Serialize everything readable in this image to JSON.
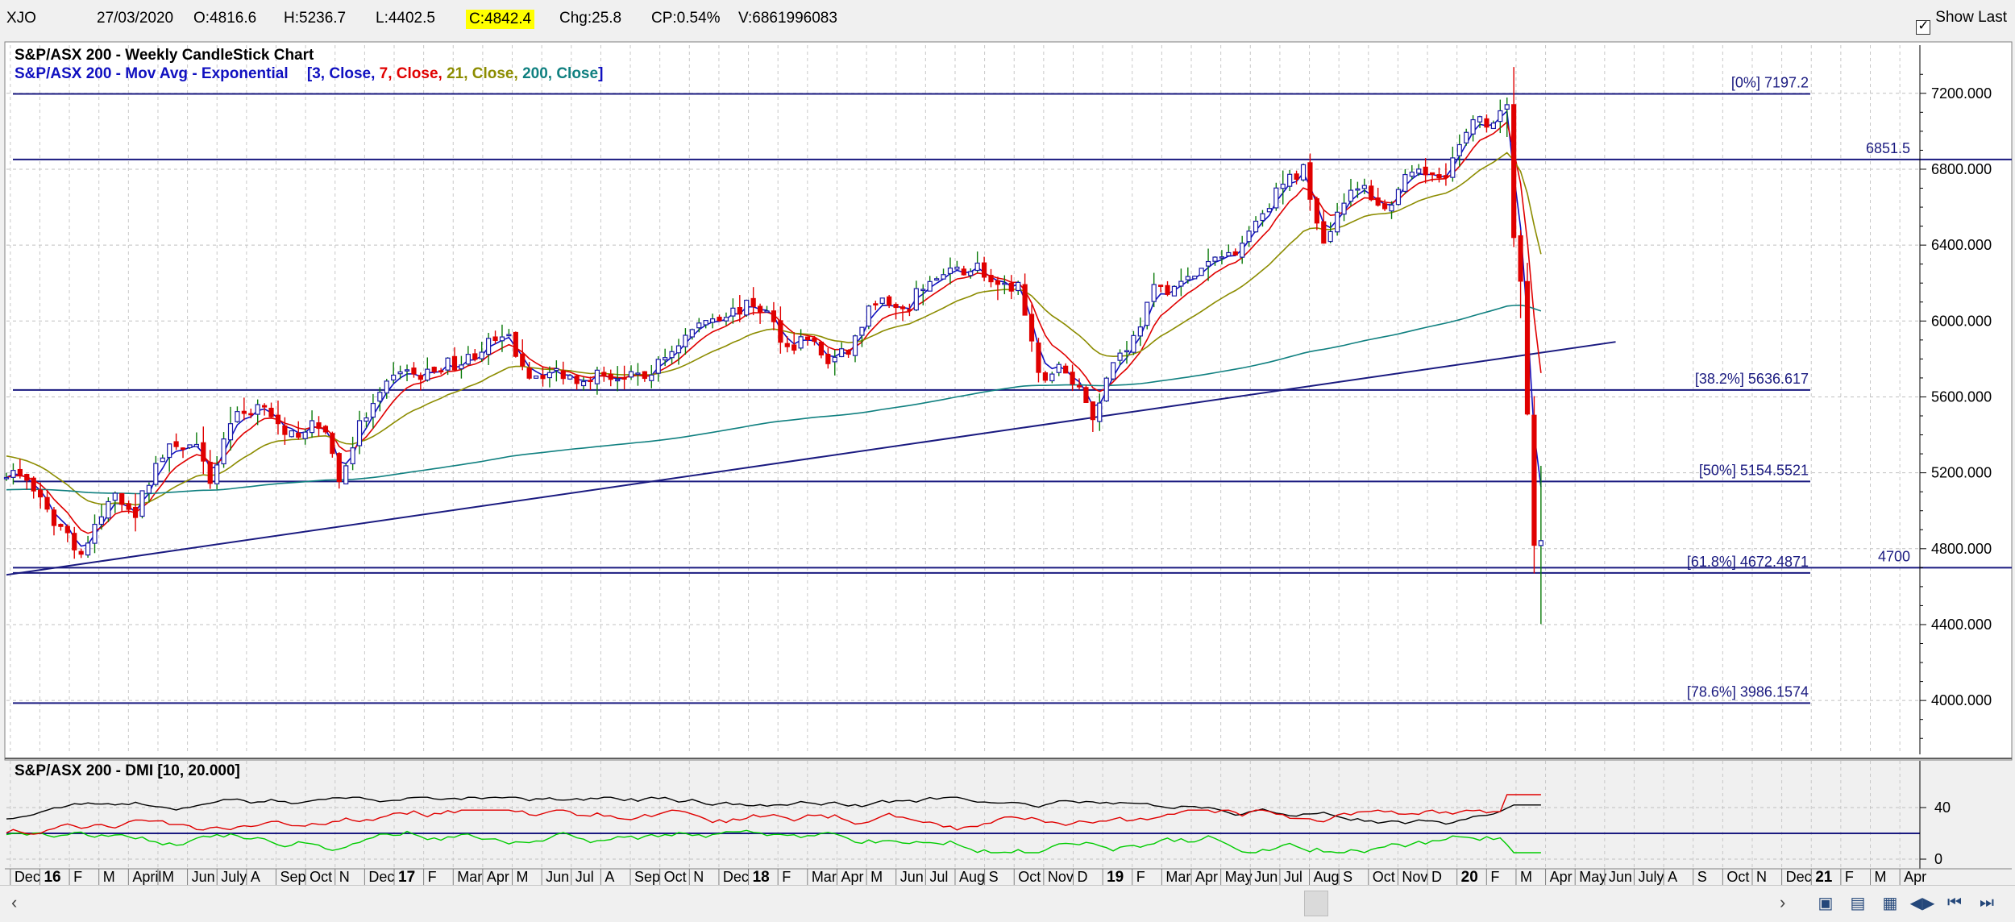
{
  "header": {
    "symbol": "XJO",
    "date": "27/03/2020",
    "open": "O:4816.6",
    "high": "H:5236.7",
    "low": "L:4402.5",
    "close": "C:4842.4",
    "change": "Chg:25.8",
    "change_pct": "CP:0.54%",
    "volume": "V:6861996083",
    "show_last": "Show Last"
  },
  "main_panel": {
    "title": "S&P/ASX 200 - Weekly CandleStick Chart",
    "ma_title": "S&P/ASX 200 - Mov Avg - Exponential",
    "ma_params": [
      {
        "text": "[3, Close, ",
        "color": "#1010c0"
      },
      {
        "text": "7, Close, ",
        "color": "#e00000"
      },
      {
        "text": "21, Close, ",
        "color": "#8c8c00"
      },
      {
        "text": "200, Close",
        "color": "#108080"
      },
      {
        "text": "]",
        "color": "#1010c0"
      }
    ],
    "y_ticks": [
      "7200.000",
      "6800.000",
      "6400.000",
      "6000.000",
      "5600.000",
      "5200.000",
      "4800.000",
      "4400.000",
      "4000.000"
    ],
    "fib_labels": [
      {
        "label": "[0%] 7197.2",
        "value": 7197.2
      },
      {
        "label": "[38.2%] 5636.617",
        "value": 5636.617
      },
      {
        "label": "[50%] 5154.5521",
        "value": 5154.5521
      },
      {
        "label": "[61.8%] 4672.4871",
        "value": 4672.4871
      },
      {
        "label": "[78.6%] 3986.1574",
        "value": 3986.1574
      }
    ],
    "level_labels": [
      {
        "label": "6851.5",
        "value": 6851.5
      },
      {
        "label": "4700",
        "value": 4700
      }
    ]
  },
  "dmi_panel": {
    "title": "S&P/ASX 200 - DMI [10, 20.000]",
    "y_ticks": [
      "40",
      "0"
    ]
  },
  "x_axis": {
    "labels": [
      {
        "t": "Dec",
        "b": false
      },
      {
        "t": "16",
        "b": true
      },
      {
        "t": "F",
        "b": false
      },
      {
        "t": "M",
        "b": false
      },
      {
        "t": "April",
        "b": false
      },
      {
        "t": "M",
        "b": false
      },
      {
        "t": "Jun",
        "b": false
      },
      {
        "t": "July",
        "b": false
      },
      {
        "t": "A",
        "b": false
      },
      {
        "t": "Sep",
        "b": false
      },
      {
        "t": "Oct",
        "b": false
      },
      {
        "t": "N",
        "b": false
      },
      {
        "t": "Dec",
        "b": false
      },
      {
        "t": "17",
        "b": true
      },
      {
        "t": "F",
        "b": false
      },
      {
        "t": "Mar",
        "b": false
      },
      {
        "t": "Apr",
        "b": false
      },
      {
        "t": "M",
        "b": false
      },
      {
        "t": "Jun",
        "b": false
      },
      {
        "t": "Jul",
        "b": false
      },
      {
        "t": "A",
        "b": false
      },
      {
        "t": "Sep",
        "b": false
      },
      {
        "t": "Oct",
        "b": false
      },
      {
        "t": "N",
        "b": false
      },
      {
        "t": "Dec",
        "b": false
      },
      {
        "t": "18",
        "b": true
      },
      {
        "t": "F",
        "b": false
      },
      {
        "t": "Mar",
        "b": false
      },
      {
        "t": "Apr",
        "b": false
      },
      {
        "t": "M",
        "b": false
      },
      {
        "t": "Jun",
        "b": false
      },
      {
        "t": "Jul",
        "b": false
      },
      {
        "t": "Aug",
        "b": false
      },
      {
        "t": "S",
        "b": false
      },
      {
        "t": "Oct",
        "b": false
      },
      {
        "t": "Nov",
        "b": false
      },
      {
        "t": "D",
        "b": false
      },
      {
        "t": "19",
        "b": true
      },
      {
        "t": "F",
        "b": false
      },
      {
        "t": "Mar",
        "b": false
      },
      {
        "t": "Apr",
        "b": false
      },
      {
        "t": "May",
        "b": false
      },
      {
        "t": "Jun",
        "b": false
      },
      {
        "t": "Jul",
        "b": false
      },
      {
        "t": "Aug",
        "b": false
      },
      {
        "t": "S",
        "b": false
      },
      {
        "t": "Oct",
        "b": false
      },
      {
        "t": "Nov",
        "b": false
      },
      {
        "t": "D",
        "b": false
      },
      {
        "t": "20",
        "b": true
      },
      {
        "t": "F",
        "b": false
      },
      {
        "t": "M",
        "b": false
      },
      {
        "t": "Apr",
        "b": false
      },
      {
        "t": "May",
        "b": false
      },
      {
        "t": "Jun",
        "b": false
      },
      {
        "t": "July",
        "b": false
      },
      {
        "t": "A",
        "b": false
      },
      {
        "t": "S",
        "b": false
      },
      {
        "t": "Oct",
        "b": false
      },
      {
        "t": "N",
        "b": false
      },
      {
        "t": "Dec",
        "b": false
      },
      {
        "t": "21",
        "b": true
      },
      {
        "t": "F",
        "b": false
      },
      {
        "t": "M",
        "b": false
      },
      {
        "t": "Apr",
        "b": false
      }
    ]
  },
  "colors": {
    "up_candle": "#1a1aa8",
    "down_candle": "#e00000",
    "ema3": "#1010c0",
    "ema7": "#e00000",
    "ema21": "#8c8c00",
    "ema200": "#108080",
    "level_line": "#1a1a80",
    "dmi_adx": "#000000",
    "dmi_plus": "#00cc00",
    "dmi_minus": "#e00000"
  },
  "chart_data": {
    "type": "candlestick",
    "title": "S&P/ASX 200 - Weekly CandleStick Chart",
    "ylim": [
      3750,
      7420
    ],
    "close_path": [
      [
        "2015-11-27",
        5210
      ],
      [
        "2015-12-18",
        5170
      ],
      [
        "2016-01-08",
        4980
      ],
      [
        "2016-01-29",
        4880
      ],
      [
        "2016-02-12",
        4770
      ],
      [
        "2016-02-26",
        4900
      ],
      [
        "2016-03-18",
        5100
      ],
      [
        "2016-04-08",
        4990
      ],
      [
        "2016-04-29",
        5250
      ],
      [
        "2016-05-20",
        5360
      ],
      [
        "2016-06-10",
        5320
      ],
      [
        "2016-06-24",
        5150
      ],
      [
        "2016-07-15",
        5480
      ],
      [
        "2016-08-05",
        5530
      ],
      [
        "2016-08-19",
        5580
      ],
      [
        "2016-09-09",
        5370
      ],
      [
        "2016-09-30",
        5440
      ],
      [
        "2016-10-21",
        5440
      ],
      [
        "2016-11-04",
        5150
      ],
      [
        "2016-11-25",
        5450
      ],
      [
        "2016-12-16",
        5600
      ],
      [
        "2017-01-06",
        5750
      ],
      [
        "2017-01-27",
        5700
      ],
      [
        "2017-02-17",
        5770
      ],
      [
        "2017-03-10",
        5780
      ],
      [
        "2017-04-07",
        5880
      ],
      [
        "2017-04-28",
        5900
      ],
      [
        "2017-05-19",
        5720
      ],
      [
        "2017-06-16",
        5730
      ],
      [
        "2017-07-07",
        5700
      ],
      [
        "2017-07-28",
        5720
      ],
      [
        "2017-08-25",
        5700
      ],
      [
        "2017-09-15",
        5700
      ],
      [
        "2017-10-06",
        5810
      ],
      [
        "2017-10-27",
        5920
      ],
      [
        "2017-11-17",
        6010
      ],
      [
        "2017-12-15",
        6050
      ],
      [
        "2018-01-05",
        6090
      ],
      [
        "2018-01-19",
        6040
      ],
      [
        "2018-02-09",
        5860
      ],
      [
        "2018-03-02",
        5920
      ],
      [
        "2018-03-23",
        5780
      ],
      [
        "2018-04-13",
        5840
      ],
      [
        "2018-05-11",
        6120
      ],
      [
        "2018-06-08",
        6030
      ],
      [
        "2018-06-29",
        6190
      ],
      [
        "2018-07-27",
        6250
      ],
      [
        "2018-08-24",
        6290
      ],
      [
        "2018-09-14",
        6160
      ],
      [
        "2018-10-05",
        6190
      ],
      [
        "2018-10-26",
        5700
      ],
      [
        "2018-11-16",
        5750
      ],
      [
        "2018-12-07",
        5650
      ],
      [
        "2018-12-21",
        5500
      ],
      [
        "2019-01-11",
        5790
      ],
      [
        "2019-02-01",
        5910
      ],
      [
        "2019-02-22",
        6160
      ],
      [
        "2019-03-22",
        6190
      ],
      [
        "2019-04-19",
        6300
      ],
      [
        "2019-05-17",
        6380
      ],
      [
        "2019-06-14",
        6580
      ],
      [
        "2019-07-05",
        6720
      ],
      [
        "2019-07-26",
        6800
      ],
      [
        "2019-08-16",
        6420
      ],
      [
        "2019-09-06",
        6650
      ],
      [
        "2019-09-27",
        6700
      ],
      [
        "2019-10-18",
        6580
      ],
      [
        "2019-11-08",
        6740
      ],
      [
        "2019-11-29",
        6780
      ],
      [
        "2019-12-20",
        6790
      ],
      [
        "2020-01-10",
        6980
      ],
      [
        "2020-01-24",
        7080
      ],
      [
        "2020-02-07",
        7020
      ],
      [
        "2020-02-21",
        7140
      ],
      [
        "2020-02-28",
        6440
      ],
      [
        "2020-03-06",
        6210
      ],
      [
        "2020-03-13",
        5510
      ],
      [
        "2020-03-20",
        4818
      ],
      [
        "2020-03-27",
        4842.4
      ]
    ],
    "last_bar": {
      "date": "2020-03-27",
      "open": 4816.6,
      "high": 5236.7,
      "low": 4402.5,
      "close": 4842.4
    },
    "trendline": [
      [
        "2015-11-27",
        4662
      ],
      [
        "2020-06-12",
        5890
      ]
    ],
    "horizontal_levels": [
      7197.2,
      6851.5,
      5636.617,
      5154.5521,
      4672.4871,
      4700,
      3986.1574
    ],
    "series_names": [
      "EMA 3",
      "EMA 7",
      "EMA 21",
      "EMA 200"
    ]
  }
}
